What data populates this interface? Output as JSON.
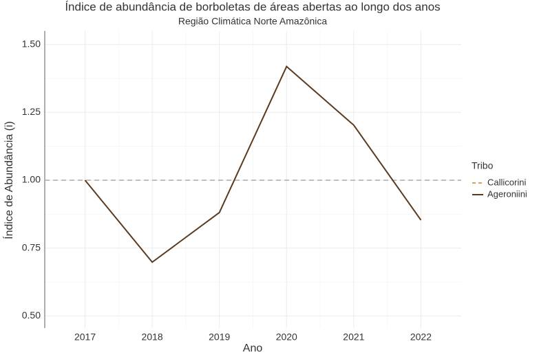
{
  "chart_data": {
    "type": "line",
    "title": "Índice de abundância de borboletas de áreas abertas ao longo dos anos",
    "subtitle": "Região Climática Norte Amazônica",
    "x_label": "Ano",
    "y_label": "Índice de Abundância (i)",
    "x": [
      2017,
      2018,
      2019,
      2020,
      2021,
      2022
    ],
    "series": [
      {
        "name": "Callicorini",
        "color": "#d4a55c",
        "dash": "dashed",
        "values": [
          null,
          null,
          null,
          null,
          null,
          null
        ]
      },
      {
        "name": "Ageroniini",
        "color": "#5a3a1e",
        "dash": "solid",
        "values": [
          1.0,
          0.698,
          0.881,
          1.419,
          1.203,
          0.853
        ]
      }
    ],
    "reference_line": {
      "value": 1.0,
      "color": "#aaaaaa"
    },
    "xlim": [
      2016.4,
      2022.6
    ],
    "ylim": [
      0.455,
      1.55
    ],
    "xticks": [
      2017,
      2018,
      2019,
      2020,
      2021,
      2022
    ],
    "yticks": [
      {
        "value": 0.5,
        "label": "0.50"
      },
      {
        "value": 0.75,
        "label": "0.75"
      },
      {
        "value": 1.0,
        "label": "1.00"
      },
      {
        "value": 1.25,
        "label": "1.25"
      },
      {
        "value": 1.5,
        "label": "1.50"
      }
    ],
    "legend_title": "Tribo",
    "legend": "right",
    "grid": true
  }
}
